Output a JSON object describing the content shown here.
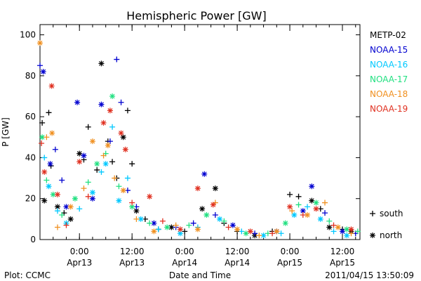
{
  "chart_data": {
    "type": "scatter",
    "title": "Hemispheric Power [GW]",
    "xlabel": "Date and Time",
    "ylabel": "P [GW]",
    "ylim": [
      0,
      105
    ],
    "yticks": [
      0,
      20,
      40,
      60,
      80,
      100
    ],
    "xlim": [
      "2011-04-12 15:00",
      "2011-04-15 16:00"
    ],
    "xticks": [
      {
        "t": "2011-04-13 00:00",
        "time": "0:00",
        "date": "Apr13"
      },
      {
        "t": "2011-04-13 12:00",
        "time": "12:00",
        "date": "Apr13"
      },
      {
        "t": "2011-04-14 00:00",
        "time": "0:00",
        "date": "Apr14"
      },
      {
        "t": "2011-04-14 12:00",
        "time": "12:00",
        "date": "Apr14"
      },
      {
        "t": "2011-04-15 00:00",
        "time": "0:00",
        "date": "Apr15"
      },
      {
        "t": "2011-04-15 12:00",
        "time": "12:00",
        "date": "Apr15"
      }
    ],
    "grid": false,
    "legend_position": "right",
    "marker_legend": [
      {
        "marker": "+",
        "label": "south"
      },
      {
        "marker": "*",
        "label": "north"
      }
    ],
    "series": [
      {
        "name": "METP-02",
        "color": "#000000",
        "points": [
          {
            "t": "2011-04-12 15:30",
            "y": 57,
            "m": "+"
          },
          {
            "t": "2011-04-12 16:00",
            "y": 19,
            "m": "*"
          },
          {
            "t": "2011-04-12 17:00",
            "y": 62,
            "m": "+"
          },
          {
            "t": "2011-04-12 17:30",
            "y": 36,
            "m": "+"
          },
          {
            "t": "2011-04-12 19:00",
            "y": 16,
            "m": "*"
          },
          {
            "t": "2011-04-12 20:30",
            "y": 13,
            "m": "+"
          },
          {
            "t": "2011-04-12 22:00",
            "y": 10,
            "m": "*"
          },
          {
            "t": "2011-04-13 00:00",
            "y": 42,
            "m": "*"
          },
          {
            "t": "2011-04-13 01:00",
            "y": 39,
            "m": "+"
          },
          {
            "t": "2011-04-13 02:00",
            "y": 55,
            "m": "+"
          },
          {
            "t": "2011-04-13 04:00",
            "y": 34,
            "m": "+"
          },
          {
            "t": "2011-04-13 05:00",
            "y": 86,
            "m": "*"
          },
          {
            "t": "2011-04-13 06:30",
            "y": 48,
            "m": "+"
          },
          {
            "t": "2011-04-13 07:30",
            "y": 38,
            "m": "+"
          },
          {
            "t": "2011-04-13 08:30",
            "y": 30,
            "m": "+"
          },
          {
            "t": "2011-04-13 10:00",
            "y": 50,
            "m": "*"
          },
          {
            "t": "2011-04-13 11:00",
            "y": 63,
            "m": "+"
          },
          {
            "t": "2011-04-13 12:00",
            "y": 37,
            "m": "+"
          },
          {
            "t": "2011-04-13 13:00",
            "y": 14,
            "m": "*"
          },
          {
            "t": "2011-04-13 15:00",
            "y": 10,
            "m": "+"
          },
          {
            "t": "2011-04-13 18:00",
            "y": 5,
            "m": "+"
          },
          {
            "t": "2011-04-13 21:00",
            "y": 6,
            "m": "*"
          },
          {
            "t": "2011-04-14 00:00",
            "y": 4,
            "m": "+"
          },
          {
            "t": "2011-04-14 04:00",
            "y": 15,
            "m": "*"
          },
          {
            "t": "2011-04-14 07:00",
            "y": 25,
            "m": "*"
          },
          {
            "t": "2011-04-14 09:00",
            "y": 8,
            "m": "+"
          },
          {
            "t": "2011-04-14 12:00",
            "y": 4,
            "m": "+"
          },
          {
            "t": "2011-04-14 16:00",
            "y": 2,
            "m": "*"
          },
          {
            "t": "2011-04-14 20:00",
            "y": 4,
            "m": "+"
          },
          {
            "t": "2011-04-15 00:00",
            "y": 22,
            "m": "+"
          },
          {
            "t": "2011-04-15 02:00",
            "y": 21,
            "m": "+"
          },
          {
            "t": "2011-04-15 05:00",
            "y": 19,
            "m": "*"
          },
          {
            "t": "2011-04-15 07:00",
            "y": 15,
            "m": "+"
          },
          {
            "t": "2011-04-15 09:00",
            "y": 6,
            "m": "*"
          },
          {
            "t": "2011-04-15 12:00",
            "y": 5,
            "m": "+"
          },
          {
            "t": "2011-04-15 14:00",
            "y": 4,
            "m": "*"
          }
        ]
      },
      {
        "name": "NOAA-15",
        "color": "#0000d0",
        "points": [
          {
            "t": "2011-04-12 15:00",
            "y": 85,
            "m": "+"
          },
          {
            "t": "2011-04-12 15:45",
            "y": 82,
            "m": "*"
          },
          {
            "t": "2011-04-12 17:20",
            "y": 37,
            "m": "*"
          },
          {
            "t": "2011-04-12 18:30",
            "y": 44,
            "m": "+"
          },
          {
            "t": "2011-04-12 20:00",
            "y": 29,
            "m": "+"
          },
          {
            "t": "2011-04-12 21:00",
            "y": 16,
            "m": "*"
          },
          {
            "t": "2011-04-12 23:30",
            "y": 67,
            "m": "*"
          },
          {
            "t": "2011-04-13 01:00",
            "y": 41,
            "m": "*"
          },
          {
            "t": "2011-04-13 03:00",
            "y": 20,
            "m": "*"
          },
          {
            "t": "2011-04-13 05:00",
            "y": 66,
            "m": "*"
          },
          {
            "t": "2011-04-13 07:00",
            "y": 48,
            "m": "+"
          },
          {
            "t": "2011-04-13 08:30",
            "y": 88,
            "m": "+"
          },
          {
            "t": "2011-04-13 09:30",
            "y": 67,
            "m": "+"
          },
          {
            "t": "2011-04-13 11:00",
            "y": 24,
            "m": "+"
          },
          {
            "t": "2011-04-13 13:00",
            "y": 16,
            "m": "+"
          },
          {
            "t": "2011-04-13 17:00",
            "y": 8,
            "m": "*"
          },
          {
            "t": "2011-04-13 22:00",
            "y": 6,
            "m": "+"
          },
          {
            "t": "2011-04-14 02:00",
            "y": 8,
            "m": "+"
          },
          {
            "t": "2011-04-14 04:30",
            "y": 32,
            "m": "*"
          },
          {
            "t": "2011-04-14 07:00",
            "y": 12,
            "m": "+"
          },
          {
            "t": "2011-04-14 11:00",
            "y": 7,
            "m": "*"
          },
          {
            "t": "2011-04-14 16:00",
            "y": 3,
            "m": "+"
          },
          {
            "t": "2011-04-14 21:00",
            "y": 4,
            "m": "*"
          },
          {
            "t": "2011-04-15 03:00",
            "y": 14,
            "m": "*"
          },
          {
            "t": "2011-04-15 05:00",
            "y": 26,
            "m": "*"
          },
          {
            "t": "2011-04-15 08:00",
            "y": 13,
            "m": "+"
          },
          {
            "t": "2011-04-15 12:00",
            "y": 4,
            "m": "*"
          },
          {
            "t": "2011-04-15 15:00",
            "y": 3,
            "m": "+"
          }
        ]
      },
      {
        "name": "NOAA-16",
        "color": "#00c8ff",
        "points": [
          {
            "t": "2011-04-12 16:00",
            "y": 40,
            "m": "+"
          },
          {
            "t": "2011-04-12 17:00",
            "y": 26,
            "m": "*"
          },
          {
            "t": "2011-04-12 19:00",
            "y": 14,
            "m": "+"
          },
          {
            "t": "2011-04-12 21:00",
            "y": 8,
            "m": "*"
          },
          {
            "t": "2011-04-13 00:00",
            "y": 15,
            "m": "+"
          },
          {
            "t": "2011-04-13 03:00",
            "y": 23,
            "m": "*"
          },
          {
            "t": "2011-04-13 05:00",
            "y": 33,
            "m": "+"
          },
          {
            "t": "2011-04-13 06:00",
            "y": 37,
            "m": "*"
          },
          {
            "t": "2011-04-13 07:30",
            "y": 55,
            "m": "+"
          },
          {
            "t": "2011-04-13 09:00",
            "y": 19,
            "m": "*"
          },
          {
            "t": "2011-04-13 11:00",
            "y": 30,
            "m": "+"
          },
          {
            "t": "2011-04-13 14:00",
            "y": 10,
            "m": "*"
          },
          {
            "t": "2011-04-13 18:00",
            "y": 5,
            "m": "+"
          },
          {
            "t": "2011-04-13 23:00",
            "y": 3,
            "m": "*"
          },
          {
            "t": "2011-04-14 03:00",
            "y": 6,
            "m": "+"
          },
          {
            "t": "2011-04-14 08:00",
            "y": 10,
            "m": "*"
          },
          {
            "t": "2011-04-14 13:00",
            "y": 4,
            "m": "+"
          },
          {
            "t": "2011-04-14 18:00",
            "y": 2,
            "m": "*"
          },
          {
            "t": "2011-04-14 22:00",
            "y": 3,
            "m": "+"
          },
          {
            "t": "2011-04-15 01:00",
            "y": 12,
            "m": "*"
          },
          {
            "t": "2011-04-15 04:00",
            "y": 16,
            "m": "+"
          },
          {
            "t": "2011-04-15 07:00",
            "y": 10,
            "m": "*"
          },
          {
            "t": "2011-04-15 10:00",
            "y": 4,
            "m": "+"
          },
          {
            "t": "2011-04-15 13:00",
            "y": 2,
            "m": "*"
          }
        ]
      },
      {
        "name": "NOAA-17",
        "color": "#20e080",
        "points": [
          {
            "t": "2011-04-12 15:30",
            "y": 50,
            "m": "*"
          },
          {
            "t": "2011-04-12 16:30",
            "y": 29,
            "m": "+"
          },
          {
            "t": "2011-04-12 18:00",
            "y": 22,
            "m": "*"
          },
          {
            "t": "2011-04-12 20:00",
            "y": 12,
            "m": "+"
          },
          {
            "t": "2011-04-12 23:00",
            "y": 20,
            "m": "*"
          },
          {
            "t": "2011-04-13 02:00",
            "y": 28,
            "m": "+"
          },
          {
            "t": "2011-04-13 04:00",
            "y": 37,
            "m": "*"
          },
          {
            "t": "2011-04-13 06:00",
            "y": 42,
            "m": "+"
          },
          {
            "t": "2011-04-13 07:30",
            "y": 70,
            "m": "*"
          },
          {
            "t": "2011-04-13 09:00",
            "y": 26,
            "m": "+"
          },
          {
            "t": "2011-04-13 12:00",
            "y": 16,
            "m": "*"
          },
          {
            "t": "2011-04-13 16:00",
            "y": 8,
            "m": "+"
          },
          {
            "t": "2011-04-13 20:00",
            "y": 6,
            "m": "*"
          },
          {
            "t": "2011-04-14 01:00",
            "y": 7,
            "m": "+"
          },
          {
            "t": "2011-04-14 05:00",
            "y": 12,
            "m": "*"
          },
          {
            "t": "2011-04-14 09:00",
            "y": 9,
            "m": "+"
          },
          {
            "t": "2011-04-14 14:00",
            "y": 3,
            "m": "*"
          },
          {
            "t": "2011-04-14 19:00",
            "y": 3,
            "m": "+"
          },
          {
            "t": "2011-04-14 23:00",
            "y": 8,
            "m": "*"
          },
          {
            "t": "2011-04-15 02:00",
            "y": 17,
            "m": "+"
          },
          {
            "t": "2011-04-15 06:00",
            "y": 18,
            "m": "*"
          },
          {
            "t": "2011-04-15 09:00",
            "y": 9,
            "m": "+"
          },
          {
            "t": "2011-04-15 13:00",
            "y": 5,
            "m": "*"
          },
          {
            "t": "2011-04-15 15:30",
            "y": 4,
            "m": "+"
          }
        ]
      },
      {
        "name": "NOAA-18",
        "color": "#f09020",
        "points": [
          {
            "t": "2011-04-12 15:00",
            "y": 96,
            "m": "*"
          },
          {
            "t": "2011-04-12 16:30",
            "y": 50,
            "m": "+"
          },
          {
            "t": "2011-04-12 17:45",
            "y": 52,
            "m": "*"
          },
          {
            "t": "2011-04-12 19:00",
            "y": 6,
            "m": "+"
          },
          {
            "t": "2011-04-12 22:00",
            "y": 16,
            "m": "*"
          },
          {
            "t": "2011-04-13 01:00",
            "y": 25,
            "m": "+"
          },
          {
            "t": "2011-04-13 03:00",
            "y": 48,
            "m": "*"
          },
          {
            "t": "2011-04-13 05:30",
            "y": 41,
            "m": "+"
          },
          {
            "t": "2011-04-13 06:30",
            "y": 46,
            "m": "*"
          },
          {
            "t": "2011-04-13 08:00",
            "y": 30,
            "m": "+"
          },
          {
            "t": "2011-04-13 10:00",
            "y": 24,
            "m": "*"
          },
          {
            "t": "2011-04-13 13:00",
            "y": 10,
            "m": "+"
          },
          {
            "t": "2011-04-13 17:00",
            "y": 4,
            "m": "*"
          },
          {
            "t": "2011-04-13 22:00",
            "y": 7,
            "m": "+"
          },
          {
            "t": "2011-04-14 03:00",
            "y": 5,
            "m": "*"
          },
          {
            "t": "2011-04-14 07:00",
            "y": 18,
            "m": "+"
          },
          {
            "t": "2011-04-14 12:00",
            "y": 5,
            "m": "*"
          },
          {
            "t": "2011-04-14 17:00",
            "y": 2,
            "m": "+"
          },
          {
            "t": "2011-04-14 21:00",
            "y": 4,
            "m": "*"
          },
          {
            "t": "2011-04-15 00:30",
            "y": 14,
            "m": "+"
          },
          {
            "t": "2011-04-15 04:00",
            "y": 12,
            "m": "*"
          },
          {
            "t": "2011-04-15 08:00",
            "y": 18,
            "m": "+"
          },
          {
            "t": "2011-04-15 11:00",
            "y": 6,
            "m": "*"
          },
          {
            "t": "2011-04-15 14:00",
            "y": 3,
            "m": "+"
          }
        ]
      },
      {
        "name": "NOAA-19",
        "color": "#e03020",
        "points": [
          {
            "t": "2011-04-12 15:20",
            "y": 47,
            "m": "+"
          },
          {
            "t": "2011-04-12 16:00",
            "y": 33,
            "m": "*"
          },
          {
            "t": "2011-04-12 17:40",
            "y": 75,
            "m": "*"
          },
          {
            "t": "2011-04-12 19:00",
            "y": 22,
            "m": "*"
          },
          {
            "t": "2011-04-12 21:00",
            "y": 7,
            "m": "+"
          },
          {
            "t": "2011-04-13 00:00",
            "y": 38,
            "m": "*"
          },
          {
            "t": "2011-04-13 02:00",
            "y": 21,
            "m": "+"
          },
          {
            "t": "2011-04-13 05:30",
            "y": 57,
            "m": "*"
          },
          {
            "t": "2011-04-13 07:00",
            "y": 63,
            "m": "*"
          },
          {
            "t": "2011-04-13 09:30",
            "y": 52,
            "m": "*"
          },
          {
            "t": "2011-04-13 10:30",
            "y": 44,
            "m": "*"
          },
          {
            "t": "2011-04-13 12:00",
            "y": 18,
            "m": "+"
          },
          {
            "t": "2011-04-13 16:00",
            "y": 21,
            "m": "*"
          },
          {
            "t": "2011-04-13 19:00",
            "y": 9,
            "m": "+"
          },
          {
            "t": "2011-04-13 23:00",
            "y": 5,
            "m": "*"
          },
          {
            "t": "2011-04-14 03:00",
            "y": 25,
            "m": "*"
          },
          {
            "t": "2011-04-14 06:30",
            "y": 17,
            "m": "*"
          },
          {
            "t": "2011-04-14 10:00",
            "y": 6,
            "m": "+"
          },
          {
            "t": "2011-04-14 15:00",
            "y": 4,
            "m": "*"
          },
          {
            "t": "2011-04-14 20:00",
            "y": 3,
            "m": "+"
          },
          {
            "t": "2011-04-15 00:00",
            "y": 16,
            "m": "*"
          },
          {
            "t": "2011-04-15 03:00",
            "y": 12,
            "m": "+"
          },
          {
            "t": "2011-04-15 06:00",
            "y": 15,
            "m": "*"
          },
          {
            "t": "2011-04-15 10:00",
            "y": 7,
            "m": "+"
          },
          {
            "t": "2011-04-15 14:00",
            "y": 5,
            "m": "*"
          }
        ]
      }
    ]
  },
  "footer": {
    "plot_credit": "Plot: CCMC",
    "timestamp": "2011/04/15 13:50:09"
  }
}
